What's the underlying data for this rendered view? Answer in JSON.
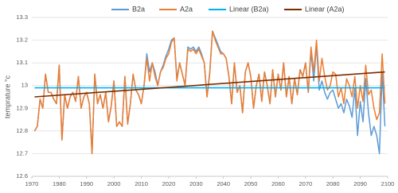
{
  "chart_data": {
    "type": "line",
    "y_label": "temprature °c",
    "x": [
      1971,
      1972,
      1973,
      1974,
      1975,
      1976,
      1977,
      1978,
      1979,
      1980,
      1981,
      1982,
      1983,
      1984,
      1985,
      1986,
      1987,
      1988,
      1989,
      1990,
      1991,
      1992,
      1993,
      1994,
      1995,
      1996,
      1997,
      1998,
      1999,
      2000,
      2001,
      2002,
      2003,
      2004,
      2005,
      2006,
      2007,
      2008,
      2009,
      2010,
      2011,
      2012,
      2013,
      2014,
      2015,
      2016,
      2017,
      2018,
      2019,
      2020,
      2021,
      2022,
      2023,
      2024,
      2025,
      2026,
      2027,
      2028,
      2029,
      2030,
      2031,
      2032,
      2033,
      2034,
      2035,
      2036,
      2037,
      2038,
      2039,
      2040,
      2041,
      2042,
      2043,
      2044,
      2045,
      2046,
      2047,
      2048,
      2049,
      2050,
      2051,
      2052,
      2053,
      2054,
      2055,
      2056,
      2057,
      2058,
      2059,
      2060,
      2061,
      2062,
      2063,
      2064,
      2065,
      2066,
      2067,
      2068,
      2069,
      2070,
      2071,
      2072,
      2073,
      2074,
      2075,
      2076,
      2077,
      2078,
      2079,
      2080,
      2081,
      2082,
      2083,
      2084,
      2085,
      2086,
      2087,
      2088,
      2089,
      2090,
      2091,
      2092,
      2093,
      2094,
      2095,
      2096,
      2097,
      2098,
      2099
    ],
    "series": [
      {
        "name": "B2a",
        "color": "#5b9bd5",
        "values": [
          12.8,
          12.82,
          12.94,
          12.9,
          13.05,
          12.97,
          12.97,
          12.94,
          12.92,
          13.09,
          12.76,
          12.96,
          12.9,
          12.95,
          12.97,
          12.93,
          13.04,
          12.9,
          12.95,
          12.97,
          12.92,
          12.7,
          13.05,
          12.92,
          12.96,
          12.9,
          12.97,
          12.84,
          12.91,
          13.02,
          12.82,
          12.84,
          12.82,
          13.04,
          12.83,
          12.92,
          13.05,
          12.98,
          12.96,
          12.92,
          13.0,
          13.14,
          13.06,
          13.1,
          13.06,
          13.0,
          13.06,
          13.09,
          13.13,
          13.16,
          13.2,
          13.21,
          13.03,
          13.1,
          13.05,
          13.0,
          13.17,
          13.16,
          13.17,
          13.15,
          13.17,
          13.14,
          13.1,
          12.95,
          13.06,
          13.24,
          13.21,
          13.18,
          13.15,
          13.14,
          13.12,
          13.04,
          12.92,
          13.1,
          12.97,
          13.0,
          12.88,
          13.06,
          13.1,
          13.04,
          12.9,
          13.0,
          13.05,
          12.93,
          13.06,
          13.0,
          12.92,
          13.07,
          12.95,
          13.05,
          12.98,
          13.1,
          12.95,
          13.04,
          12.92,
          13.03,
          12.96,
          13.07,
          13.04,
          13.1,
          12.97,
          13.15,
          13.02,
          13.18,
          12.98,
          13.02,
          12.97,
          12.94,
          12.97,
          12.98,
          12.94,
          12.9,
          12.92,
          12.88,
          12.94,
          12.91,
          12.86,
          12.99,
          12.78,
          12.93,
          12.84,
          13.03,
          12.88,
          12.78,
          12.82,
          12.78,
          12.7,
          13.06,
          12.82
        ]
      },
      {
        "name": "A2a",
        "color": "#ed7d31",
        "values": [
          12.8,
          12.82,
          12.94,
          12.9,
          13.05,
          12.97,
          12.97,
          12.94,
          12.92,
          13.09,
          12.76,
          12.96,
          12.9,
          12.95,
          12.97,
          12.93,
          13.04,
          12.9,
          12.95,
          12.97,
          12.92,
          12.7,
          13.05,
          12.92,
          12.96,
          12.9,
          12.97,
          12.84,
          12.91,
          13.02,
          12.82,
          12.84,
          12.82,
          13.04,
          12.83,
          12.92,
          13.05,
          12.98,
          12.96,
          12.92,
          13.0,
          13.12,
          13.02,
          13.1,
          13.04,
          13.0,
          13.06,
          13.08,
          13.12,
          13.14,
          13.19,
          13.21,
          13.02,
          13.1,
          13.05,
          13.0,
          13.16,
          13.15,
          13.16,
          13.14,
          13.16,
          13.13,
          13.1,
          12.95,
          13.05,
          13.24,
          13.2,
          13.17,
          13.14,
          13.14,
          13.12,
          13.04,
          12.92,
          13.1,
          12.97,
          13.0,
          12.88,
          13.06,
          13.1,
          13.04,
          12.9,
          13.0,
          13.05,
          12.93,
          13.06,
          13.0,
          12.92,
          13.07,
          12.95,
          13.05,
          12.98,
          13.1,
          12.95,
          13.04,
          12.92,
          13.03,
          12.96,
          13.07,
          13.04,
          13.1,
          12.97,
          13.17,
          13.06,
          13.2,
          13.02,
          13.12,
          13.04,
          12.98,
          13.0,
          13.06,
          13.05,
          12.95,
          12.99,
          12.92,
          13.03,
          13.0,
          12.95,
          13.04,
          12.9,
          13.0,
          12.93,
          13.09,
          12.96,
          12.98,
          12.9,
          12.85,
          12.88,
          13.14,
          12.92
        ]
      },
      {
        "name": "Linear (B2a)",
        "color": "#00b0f0",
        "x": [
          1971,
          2099
        ],
        "values": [
          12.99,
          12.99
        ]
      },
      {
        "name": "Linear (A2a)",
        "color": "#7b2c00",
        "x": [
          1971,
          2099
        ],
        "values": [
          12.95,
          13.06
        ]
      }
    ],
    "xlim": [
      1970,
      2100
    ],
    "xticks": [
      1970,
      1980,
      1990,
      2000,
      2010,
      2020,
      2030,
      2040,
      2050,
      2060,
      2070,
      2080,
      2090,
      2100
    ],
    "ylim": [
      12.6,
      13.3
    ],
    "yticks": [
      12.6,
      12.7,
      12.8,
      12.9,
      13,
      13.1,
      13.2,
      13.3
    ],
    "grid": true,
    "legend": "top"
  }
}
